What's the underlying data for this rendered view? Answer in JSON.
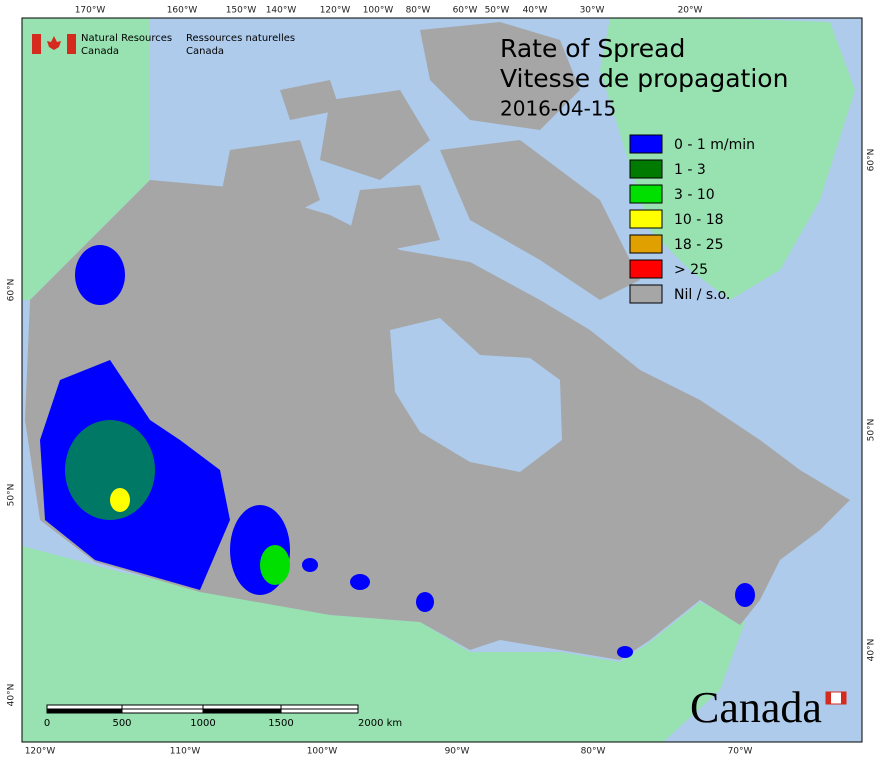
{
  "header": {
    "org_en": [
      "Natural Resources",
      "Canada"
    ],
    "org_fr": [
      "Ressources naturelles",
      "Canada"
    ]
  },
  "title": "Rate of Spread",
  "subtitle": "Vitesse de propagation",
  "date": "2016-04-15",
  "legend": [
    {
      "label": "0 - 1 m/min",
      "color": "#0000ff"
    },
    {
      "label": "1 - 3",
      "color": "#007a00"
    },
    {
      "label": "3 - 10",
      "color": "#00e000"
    },
    {
      "label": "10 - 18",
      "color": "#ffff00"
    },
    {
      "label": "18 - 25",
      "color": "#e0a000"
    },
    {
      "label": "> 25",
      "color": "#ff0000"
    },
    {
      "label": "Nil / s.o.",
      "color": "#a6a6a6"
    }
  ],
  "graticule": {
    "top": [
      "170°W",
      "160°W",
      "150°W",
      "140°W",
      "120°W",
      "100°W",
      "80°W",
      "60°W",
      "50°W",
      "40°W",
      "30°W",
      "20°W"
    ],
    "bottom": [
      "120°W",
      "110°W",
      "100°W",
      "90°W",
      "80°W",
      "70°W"
    ],
    "left": [
      "60°N",
      "50°N",
      "40°N"
    ],
    "right": [
      "60°N",
      "50°N",
      "40°N"
    ]
  },
  "scale_bar": {
    "labels": [
      "0",
      "500",
      "1000",
      "1500",
      "2000  km"
    ]
  },
  "wordmark": "Canada"
}
